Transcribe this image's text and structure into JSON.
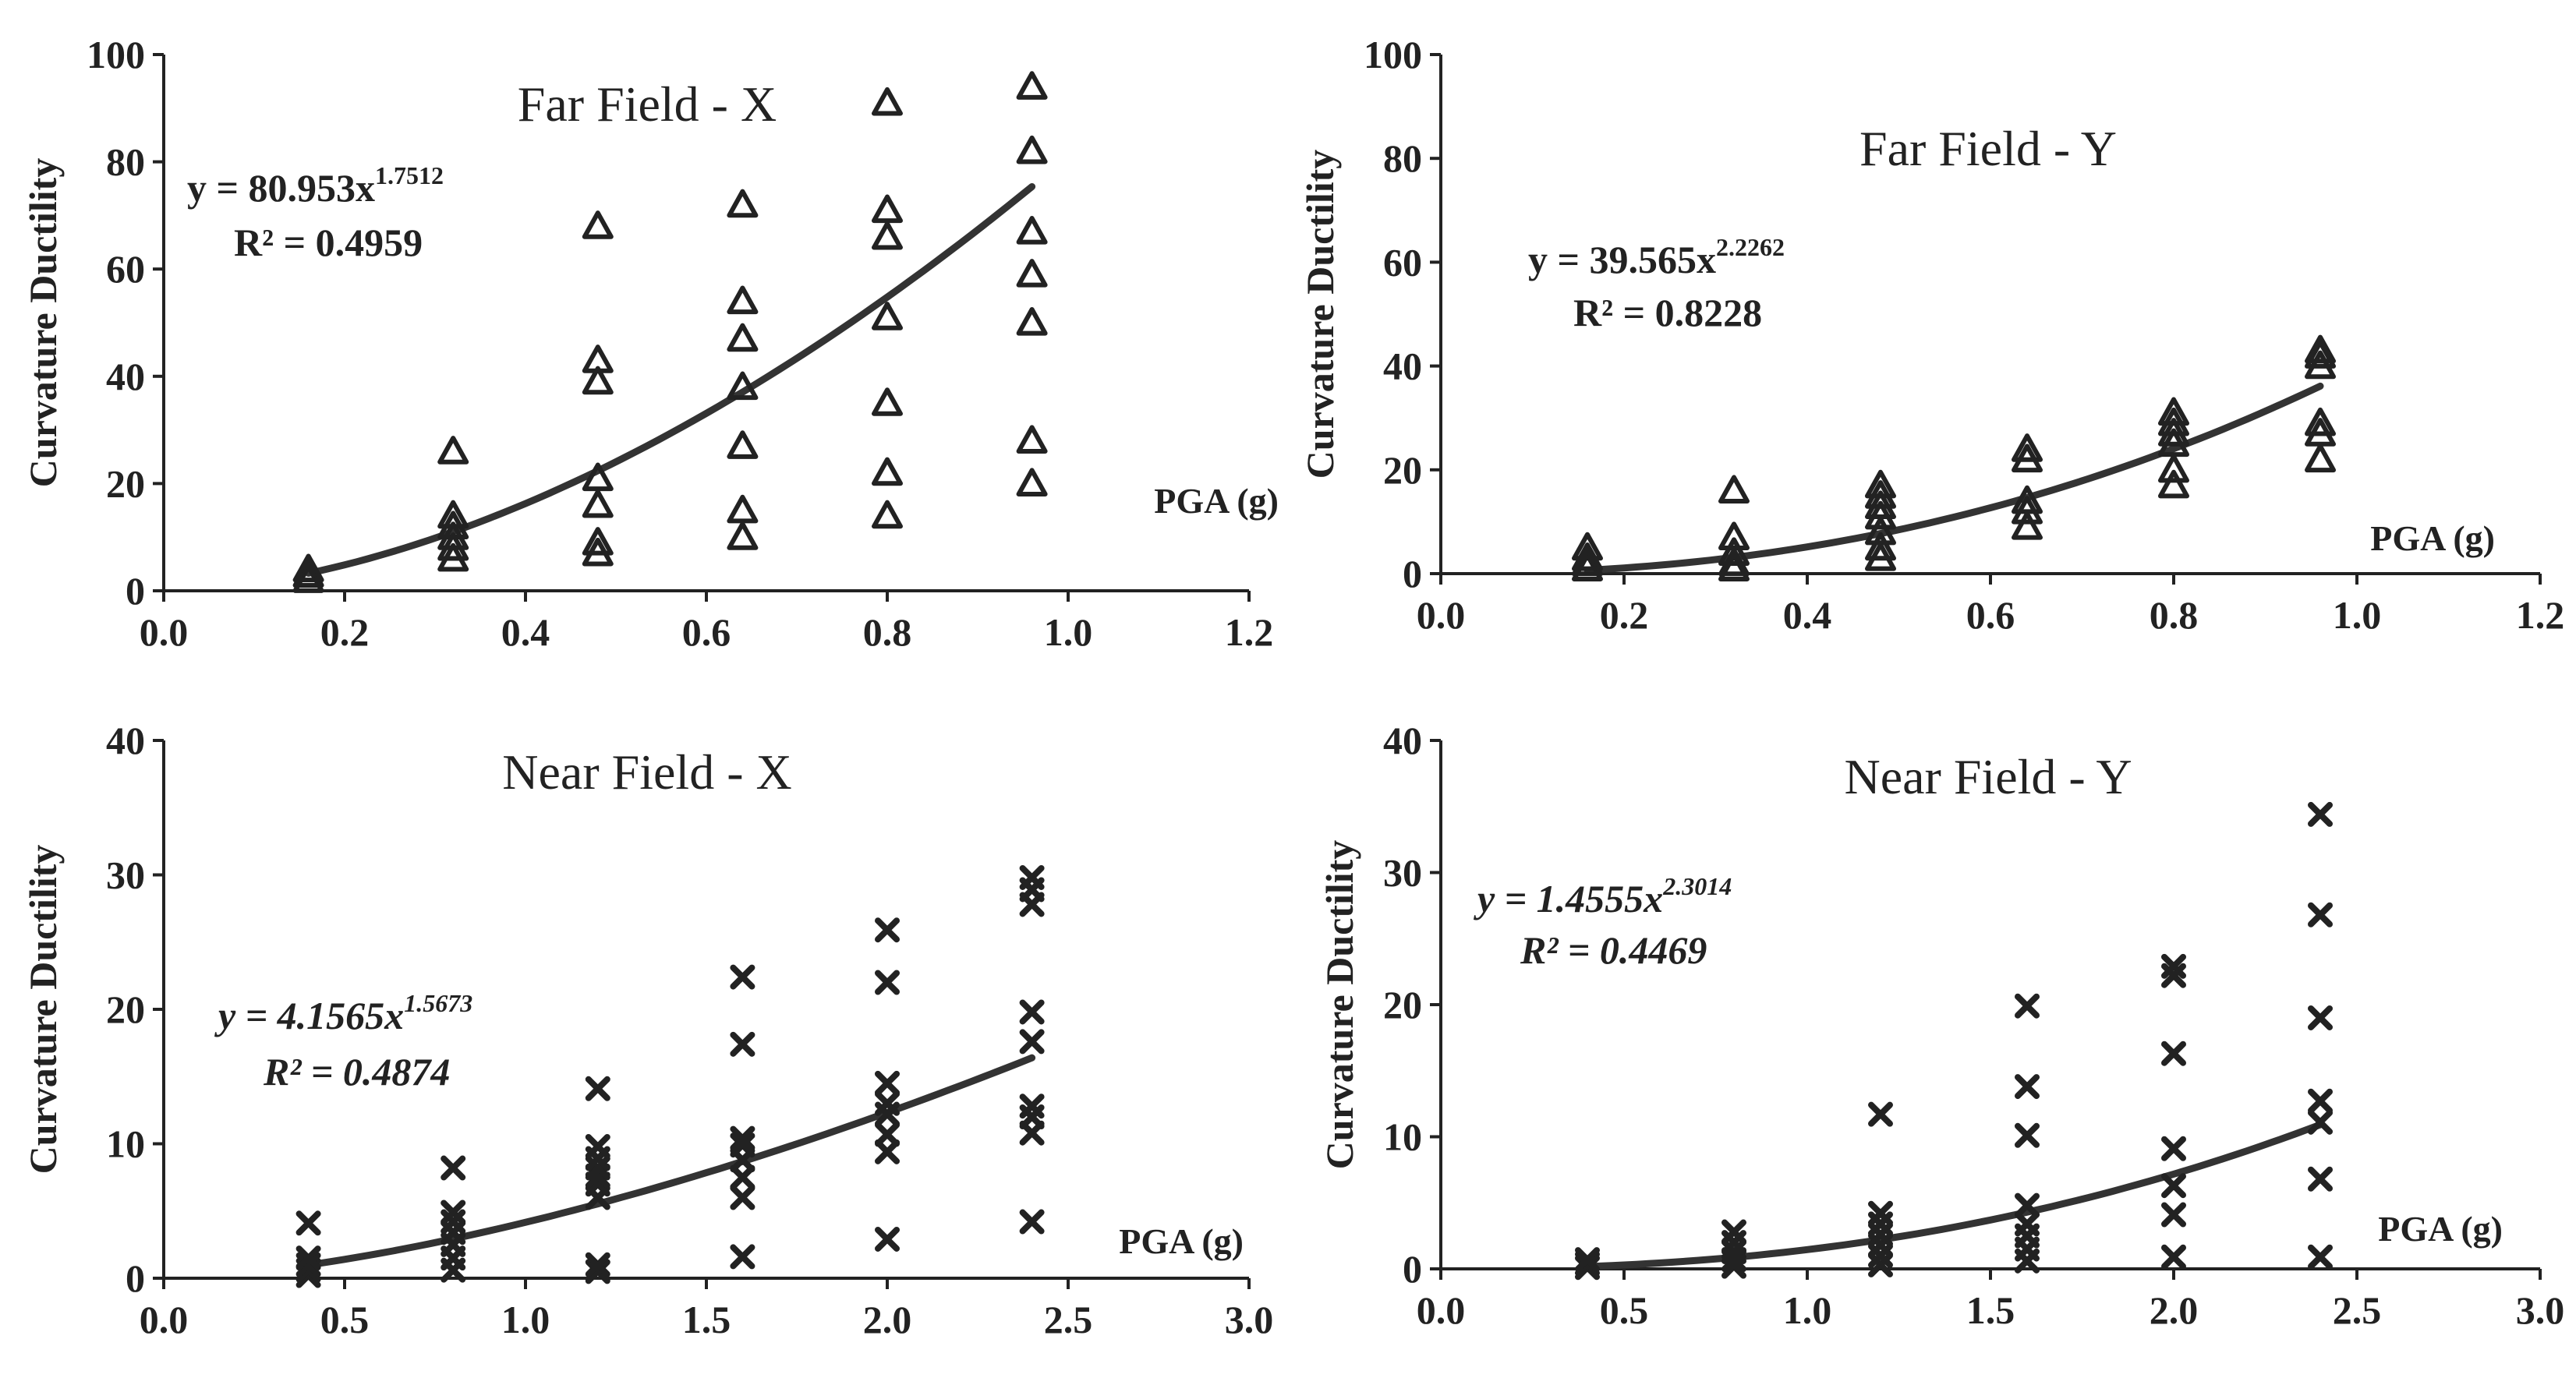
{
  "chart_data": [
    {
      "type": "scatter",
      "title": "Far Field - X",
      "xlabel": "PGA (g)",
      "ylabel": "Curvature Ductility",
      "xlim": [
        0,
        1.2
      ],
      "ylim": [
        0,
        100
      ],
      "xticks": [
        "0.0",
        "0.2",
        "0.4",
        "0.6",
        "0.8",
        "1.0",
        "1.2"
      ],
      "yticks": [
        "0",
        "20",
        "40",
        "60",
        "80",
        "100"
      ],
      "grid": false,
      "marker": "triangle",
      "equation": {
        "prefix": "y = 80.953x",
        "exponent": "1.7512",
        "r2": "R² = 0.4959",
        "italic": false
      },
      "fit": {
        "coef": 80.953,
        "power": 1.7512
      },
      "points": [
        [
          0.16,
          2
        ],
        [
          0.16,
          3
        ],
        [
          0.16,
          4
        ],
        [
          0.32,
          6
        ],
        [
          0.32,
          8
        ],
        [
          0.32,
          10
        ],
        [
          0.32,
          12
        ],
        [
          0.32,
          14
        ],
        [
          0.32,
          26
        ],
        [
          0.48,
          7
        ],
        [
          0.48,
          9
        ],
        [
          0.48,
          16
        ],
        [
          0.48,
          21
        ],
        [
          0.48,
          39
        ],
        [
          0.48,
          43
        ],
        [
          0.48,
          68
        ],
        [
          0.64,
          10
        ],
        [
          0.64,
          15
        ],
        [
          0.64,
          27
        ],
        [
          0.64,
          38
        ],
        [
          0.64,
          47
        ],
        [
          0.64,
          54
        ],
        [
          0.64,
          72
        ],
        [
          0.8,
          14
        ],
        [
          0.8,
          22
        ],
        [
          0.8,
          35
        ],
        [
          0.8,
          51
        ],
        [
          0.8,
          66
        ],
        [
          0.8,
          71
        ],
        [
          0.8,
          91
        ],
        [
          0.96,
          20
        ],
        [
          0.96,
          28
        ],
        [
          0.96,
          50
        ],
        [
          0.96,
          59
        ],
        [
          0.96,
          67
        ],
        [
          0.96,
          82
        ],
        [
          0.96,
          94
        ]
      ]
    },
    {
      "type": "scatter",
      "title": "Far Field - Y",
      "xlabel": "PGA (g)",
      "ylabel": "Curvature Ductility",
      "xlim": [
        0,
        1.2
      ],
      "ylim": [
        0,
        100
      ],
      "xticks": [
        "0.0",
        "0.2",
        "0.4",
        "0.6",
        "0.8",
        "1.0",
        "1.2"
      ],
      "yticks": [
        "0",
        "20",
        "40",
        "60",
        "80",
        "100"
      ],
      "grid": false,
      "marker": "triangle",
      "equation": {
        "prefix": "y = 39.565x",
        "exponent": "2.2262",
        "r2": "R² = 0.8228",
        "italic": false
      },
      "fit": {
        "coef": 39.565,
        "power": 2.2262
      },
      "points": [
        [
          0.16,
          1
        ],
        [
          0.16,
          2
        ],
        [
          0.16,
          3
        ],
        [
          0.16,
          5
        ],
        [
          0.32,
          1
        ],
        [
          0.32,
          2
        ],
        [
          0.32,
          4
        ],
        [
          0.32,
          7
        ],
        [
          0.32,
          16
        ],
        [
          0.48,
          3
        ],
        [
          0.48,
          5
        ],
        [
          0.48,
          8
        ],
        [
          0.48,
          11
        ],
        [
          0.48,
          13
        ],
        [
          0.48,
          15
        ],
        [
          0.48,
          17
        ],
        [
          0.64,
          9
        ],
        [
          0.64,
          12
        ],
        [
          0.64,
          14
        ],
        [
          0.64,
          22
        ],
        [
          0.64,
          24
        ],
        [
          0.8,
          17
        ],
        [
          0.8,
          20
        ],
        [
          0.8,
          25
        ],
        [
          0.8,
          27
        ],
        [
          0.8,
          29
        ],
        [
          0.8,
          31
        ],
        [
          0.96,
          22
        ],
        [
          0.96,
          27
        ],
        [
          0.96,
          29
        ],
        [
          0.96,
          40
        ],
        [
          0.96,
          42
        ],
        [
          0.96,
          43
        ]
      ]
    },
    {
      "type": "scatter",
      "title": "Near Field - X",
      "xlabel": "PGA (g)",
      "ylabel": "Curvature Ductility",
      "xlim": [
        0,
        3.0
      ],
      "ylim": [
        0,
        40
      ],
      "xticks": [
        "0.0",
        "0.5",
        "1.0",
        "1.5",
        "2.0",
        "2.5",
        "3.0"
      ],
      "yticks": [
        "0",
        "10",
        "20",
        "30",
        "40"
      ],
      "grid": false,
      "marker": "x",
      "equation": {
        "prefix": "y = 4.1565x",
        "exponent": "1.5673",
        "r2": "R² = 0.4874",
        "italic": true
      },
      "fit": {
        "coef": 4.1565,
        "power": 1.5673
      },
      "points": [
        [
          0.4,
          0.2
        ],
        [
          0.4,
          0.6
        ],
        [
          0.4,
          1.0
        ],
        [
          0.4,
          1.5
        ],
        [
          0.4,
          4.1
        ],
        [
          0.8,
          0.6
        ],
        [
          0.8,
          1.5
        ],
        [
          0.8,
          2.5
        ],
        [
          0.8,
          3.4
        ],
        [
          0.8,
          4.2
        ],
        [
          0.8,
          4.9
        ],
        [
          0.8,
          8.2
        ],
        [
          1.2,
          0.5
        ],
        [
          1.2,
          1.0
        ],
        [
          1.2,
          6.0
        ],
        [
          1.2,
          7.0
        ],
        [
          1.2,
          7.6
        ],
        [
          1.2,
          8.2
        ],
        [
          1.2,
          8.9
        ],
        [
          1.2,
          9.8
        ],
        [
          1.2,
          14.1
        ],
        [
          1.6,
          1.6
        ],
        [
          1.6,
          6.0
        ],
        [
          1.6,
          7.5
        ],
        [
          1.6,
          8.8
        ],
        [
          1.6,
          9.9
        ],
        [
          1.6,
          10.4
        ],
        [
          1.6,
          17.4
        ],
        [
          1.6,
          22.4
        ],
        [
          2.0,
          2.9
        ],
        [
          2.0,
          9.4
        ],
        [
          2.0,
          10.7
        ],
        [
          2.0,
          12.2
        ],
        [
          2.0,
          13.0
        ],
        [
          2.0,
          14.5
        ],
        [
          2.0,
          22.0
        ],
        [
          2.0,
          25.9
        ],
        [
          2.4,
          4.2
        ],
        [
          2.4,
          10.8
        ],
        [
          2.4,
          12.0
        ],
        [
          2.4,
          12.8
        ],
        [
          2.4,
          17.6
        ],
        [
          2.4,
          19.8
        ],
        [
          2.4,
          27.8
        ],
        [
          2.4,
          28.9
        ],
        [
          2.4,
          29.8
        ]
      ]
    },
    {
      "type": "scatter",
      "title": "Near Field - Y",
      "xlabel": "PGA (g)",
      "ylabel": "Curvature Ductility",
      "xlim": [
        0,
        3.0
      ],
      "ylim": [
        0,
        40
      ],
      "xticks": [
        "0.0",
        "0.5",
        "1.0",
        "1.5",
        "2.0",
        "2.5",
        "3.0"
      ],
      "yticks": [
        "0",
        "10",
        "20",
        "30",
        "40"
      ],
      "grid": false,
      "marker": "x",
      "equation": {
        "prefix": "y = 1.4555x",
        "exponent": "2.3014",
        "r2": "R² = 0.4469",
        "italic": true
      },
      "fit": {
        "coef": 1.4555,
        "power": 2.3014
      },
      "points": [
        [
          0.4,
          0.1
        ],
        [
          0.4,
          0.4
        ],
        [
          0.4,
          0.7
        ],
        [
          0.8,
          0.2
        ],
        [
          0.8,
          0.7
        ],
        [
          0.8,
          1.3
        ],
        [
          0.8,
          2.0
        ],
        [
          0.8,
          2.8
        ],
        [
          1.2,
          0.3
        ],
        [
          1.2,
          1.0
        ],
        [
          1.2,
          1.8
        ],
        [
          1.2,
          2.6
        ],
        [
          1.2,
          3.4
        ],
        [
          1.2,
          4.2
        ],
        [
          1.2,
          11.7
        ],
        [
          1.6,
          0.6
        ],
        [
          1.6,
          1.5
        ],
        [
          1.6,
          2.5
        ],
        [
          1.6,
          3.4
        ],
        [
          1.6,
          4.8
        ],
        [
          1.6,
          10.1
        ],
        [
          1.6,
          13.8
        ],
        [
          1.6,
          19.9
        ],
        [
          2.0,
          0.9
        ],
        [
          2.0,
          4.1
        ],
        [
          2.0,
          6.3
        ],
        [
          2.0,
          9.1
        ],
        [
          2.0,
          16.3
        ],
        [
          2.0,
          22.2
        ],
        [
          2.0,
          22.9
        ],
        [
          2.4,
          0.9
        ],
        [
          2.4,
          6.8
        ],
        [
          2.4,
          11.1
        ],
        [
          2.4,
          12.7
        ],
        [
          2.4,
          19.0
        ],
        [
          2.4,
          26.8
        ],
        [
          2.4,
          34.4
        ]
      ]
    }
  ]
}
